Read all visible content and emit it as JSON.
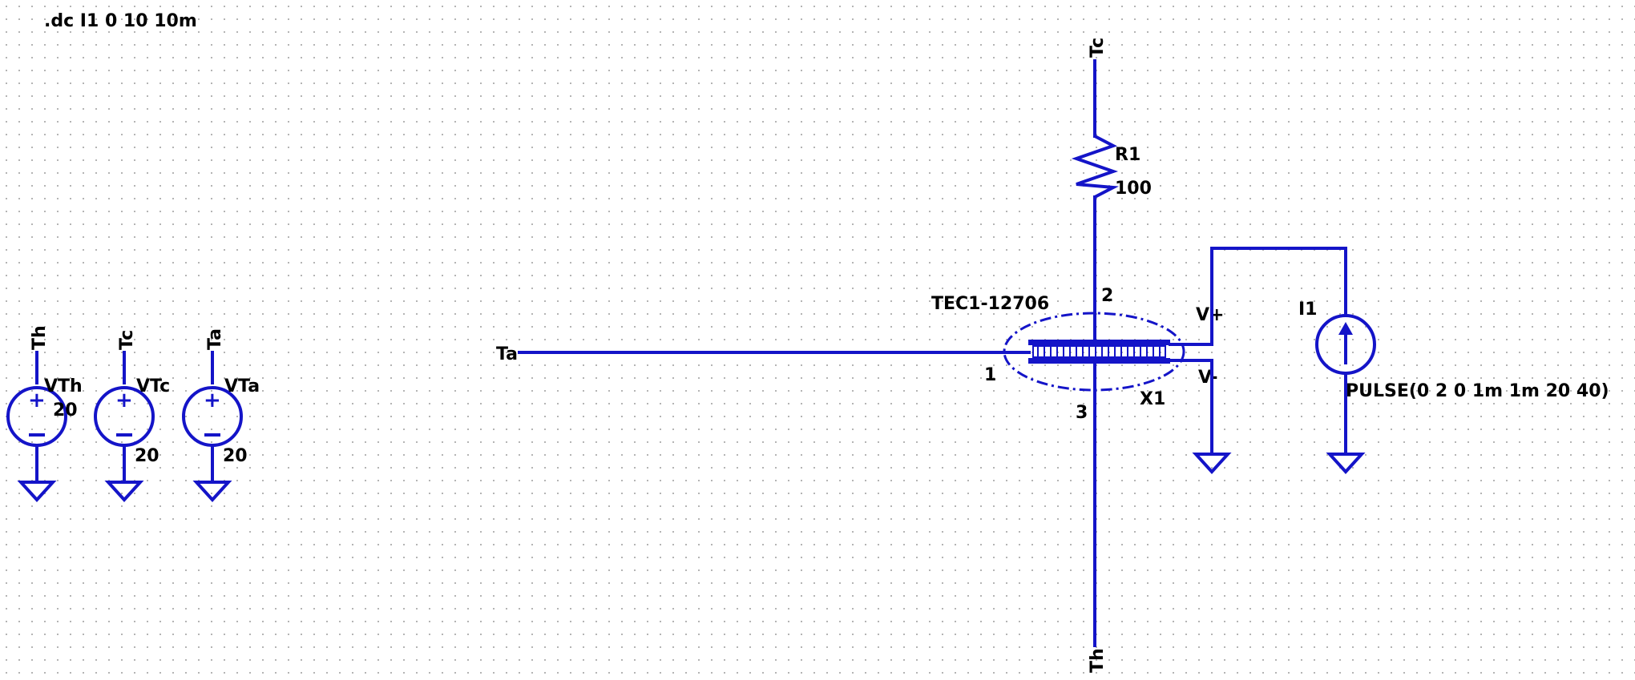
{
  "directive": ".dc I1 0 10 10m",
  "sources": [
    {
      "net": "Th",
      "name": "VTh",
      "value": "20"
    },
    {
      "net": "Tc",
      "name": "VTc",
      "value": "20"
    },
    {
      "net": "Ta",
      "name": "VTa",
      "value": "20"
    }
  ],
  "net_labels": {
    "top": "Tc",
    "left": "Ta",
    "bottom": "Th"
  },
  "resistor": {
    "name": "R1",
    "value": "100"
  },
  "tec": {
    "name": "X1",
    "part": "TEC1-12706",
    "pin1": "1",
    "pin2": "2",
    "pin3": "3",
    "vplus": "V+",
    "vminus": "V-"
  },
  "current_source": {
    "name": "I1",
    "value": "PULSE(0 2 0 1m 1m 20 40)"
  },
  "colors": {
    "wire": "#1414c8",
    "text": "#000000",
    "grid": "#b4b4b4"
  }
}
